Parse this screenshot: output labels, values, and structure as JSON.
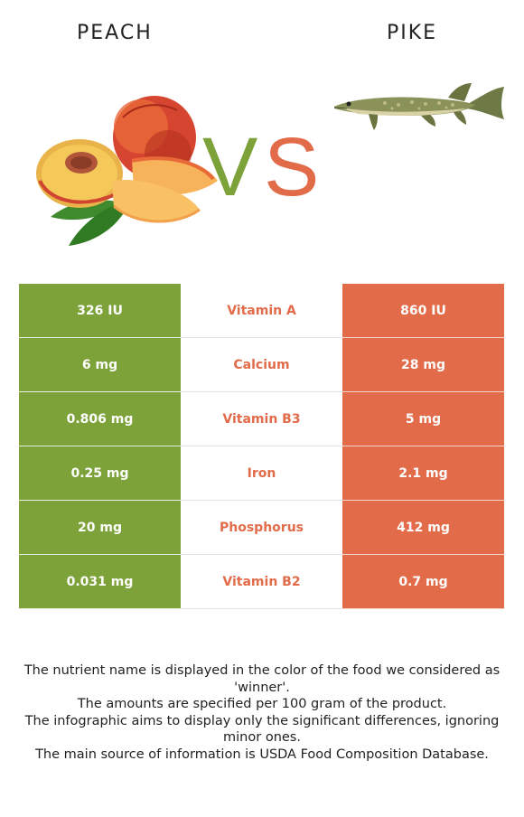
{
  "header": {
    "left_title": "PEACH",
    "right_title": "PIKE"
  },
  "vs": {
    "v": "V",
    "s": "S",
    "left_color": "#7da23a",
    "right_color": "#e26b4a"
  },
  "images": {
    "left": "peach-illustration",
    "right": "pike-fish-illustration"
  },
  "rows": [
    {
      "left": "326 IU",
      "nutrient": "Vitamin A",
      "right": "860 IU"
    },
    {
      "left": "6 mg",
      "nutrient": "Calcium",
      "right": "28 mg"
    },
    {
      "left": "0.806 mg",
      "nutrient": "Vitamin B3",
      "right": "5 mg"
    },
    {
      "left": "0.25 mg",
      "nutrient": "Iron",
      "right": "2.1 mg"
    },
    {
      "left": "20 mg",
      "nutrient": "Phosphorus",
      "right": "412 mg"
    },
    {
      "left": "0.031 mg",
      "nutrient": "Vitamin B2",
      "right": "0.7 mg"
    }
  ],
  "footnotes": [
    "The nutrient name is displayed in the color of the food we considered as 'winner'.",
    "The amounts are specified per 100 gram of the product.",
    "The infographic aims to display only the significant differences, ignoring minor ones.",
    "The main source of information is USDA Food Composition Database."
  ]
}
